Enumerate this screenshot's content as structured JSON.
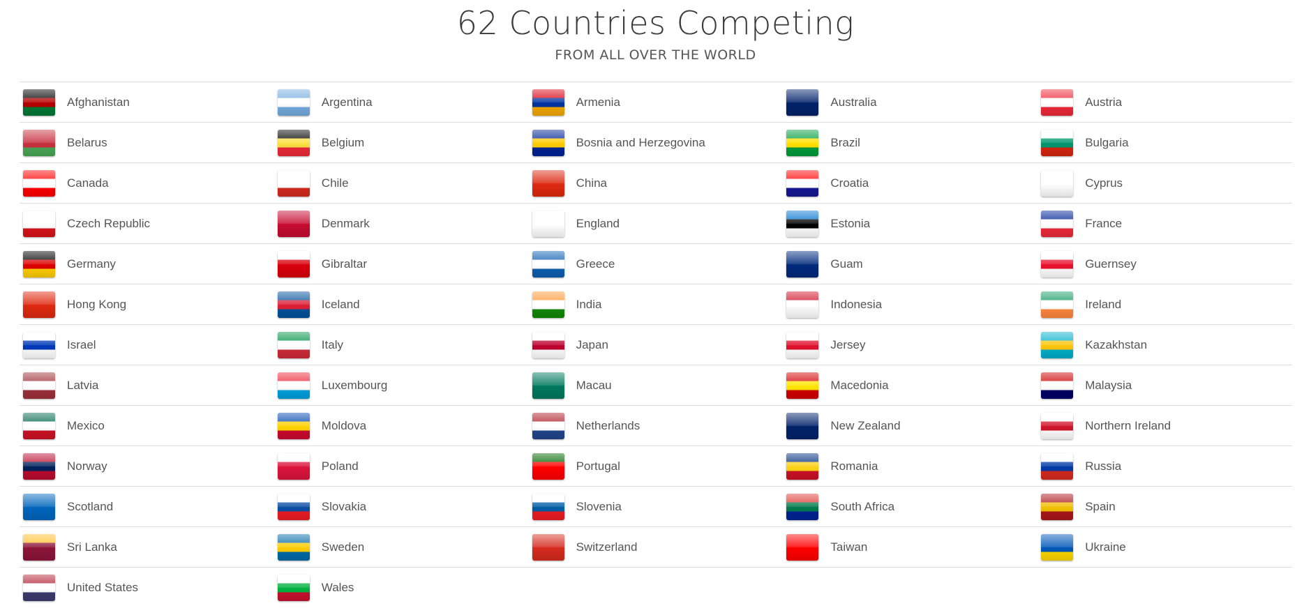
{
  "header": {
    "title": "62 Countries Competing",
    "subtitle": "FROM ALL OVER THE WORLD"
  },
  "countries": [
    {
      "name": "Afghanistan",
      "flag": "afghanistan-flag-icon",
      "colors": [
        "#000000",
        "#b40000",
        "#007a36"
      ]
    },
    {
      "name": "Argentina",
      "flag": "argentina-flag-icon",
      "colors": [
        "#74acdf",
        "#ffffff",
        "#74acdf"
      ]
    },
    {
      "name": "Armenia",
      "flag": "armenia-flag-icon",
      "colors": [
        "#d90012",
        "#0033a0",
        "#f2a800"
      ]
    },
    {
      "name": "Australia",
      "flag": "australia-flag-icon",
      "colors": [
        "#012169",
        "#012169",
        "#012169"
      ]
    },
    {
      "name": "Austria",
      "flag": "austria-flag-icon",
      "colors": [
        "#ed2939",
        "#ffffff",
        "#ed2939"
      ]
    },
    {
      "name": "Belarus",
      "flag": "belarus-flag-icon",
      "colors": [
        "#c8313e",
        "#c8313e",
        "#4aa657"
      ]
    },
    {
      "name": "Belgium",
      "flag": "belgium-flag-icon",
      "colors": [
        "#000000",
        "#fae042",
        "#ed2939"
      ]
    },
    {
      "name": "Bosnia and Herzegovina",
      "flag": "bosnia-flag-icon",
      "colors": [
        "#002395",
        "#fecb00",
        "#002395"
      ]
    },
    {
      "name": "Brazil",
      "flag": "brazil-flag-icon",
      "colors": [
        "#009c3b",
        "#ffdf00",
        "#009c3b"
      ]
    },
    {
      "name": "Bulgaria",
      "flag": "bulgaria-flag-icon",
      "colors": [
        "#ffffff",
        "#00966e",
        "#d62612"
      ]
    },
    {
      "name": "Canada",
      "flag": "canada-flag-icon",
      "colors": [
        "#ff0000",
        "#ffffff",
        "#ff0000"
      ]
    },
    {
      "name": "Chile",
      "flag": "chile-flag-icon",
      "colors": [
        "#ffffff",
        "#ffffff",
        "#d52b1e"
      ]
    },
    {
      "name": "China",
      "flag": "china-flag-icon",
      "colors": [
        "#de2910",
        "#de2910",
        "#de2910"
      ]
    },
    {
      "name": "Croatia",
      "flag": "croatia-flag-icon",
      "colors": [
        "#ff0000",
        "#ffffff",
        "#171796"
      ]
    },
    {
      "name": "Cyprus",
      "flag": "cyprus-flag-icon",
      "colors": [
        "#ffffff",
        "#ffffff",
        "#ffffff"
      ]
    },
    {
      "name": "Czech Republic",
      "flag": "czech-flag-icon",
      "colors": [
        "#ffffff",
        "#ffffff",
        "#d7141a"
      ]
    },
    {
      "name": "Denmark",
      "flag": "denmark-flag-icon",
      "colors": [
        "#c60c30",
        "#c60c30",
        "#c60c30"
      ]
    },
    {
      "name": "England",
      "flag": "england-flag-icon",
      "colors": [
        "#ffffff",
        "#ffffff",
        "#ffffff"
      ]
    },
    {
      "name": "Estonia",
      "flag": "estonia-flag-icon",
      "colors": [
        "#0072ce",
        "#000000",
        "#ffffff"
      ]
    },
    {
      "name": "France",
      "flag": "france-flag-icon",
      "colors": [
        "#002395",
        "#ffffff",
        "#ed2939"
      ]
    },
    {
      "name": "Germany",
      "flag": "germany-flag-icon",
      "colors": [
        "#000000",
        "#dd0000",
        "#ffce00"
      ]
    },
    {
      "name": "Gibraltar",
      "flag": "gibraltar-flag-icon",
      "colors": [
        "#ffffff",
        "#da000c",
        "#da000c"
      ]
    },
    {
      "name": "Greece",
      "flag": "greece-flag-icon",
      "colors": [
        "#0d5eaf",
        "#ffffff",
        "#0d5eaf"
      ]
    },
    {
      "name": "Guam",
      "flag": "guam-flag-icon",
      "colors": [
        "#00297b",
        "#00297b",
        "#00297b"
      ]
    },
    {
      "name": "Guernsey",
      "flag": "guernsey-flag-icon",
      "colors": [
        "#ffffff",
        "#e8112d",
        "#ffffff"
      ]
    },
    {
      "name": "Hong Kong",
      "flag": "hong-kong-flag-icon",
      "colors": [
        "#de2910",
        "#de2910",
        "#de2910"
      ]
    },
    {
      "name": "Iceland",
      "flag": "iceland-flag-icon",
      "colors": [
        "#02529c",
        "#dc1e35",
        "#02529c"
      ]
    },
    {
      "name": "India",
      "flag": "india-flag-icon",
      "colors": [
        "#ff9933",
        "#ffffff",
        "#138808"
      ]
    },
    {
      "name": "Indonesia",
      "flag": "indonesia-flag-icon",
      "colors": [
        "#ce1126",
        "#ffffff",
        "#ffffff"
      ]
    },
    {
      "name": "Ireland",
      "flag": "ireland-flag-icon",
      "colors": [
        "#169b62",
        "#ffffff",
        "#ff883e"
      ]
    },
    {
      "name": "Israel",
      "flag": "israel-flag-icon",
      "colors": [
        "#ffffff",
        "#0038b8",
        "#ffffff"
      ]
    },
    {
      "name": "Italy",
      "flag": "italy-flag-icon",
      "colors": [
        "#009246",
        "#ffffff",
        "#ce2b37"
      ]
    },
    {
      "name": "Japan",
      "flag": "japan-flag-icon",
      "colors": [
        "#ffffff",
        "#bc002d",
        "#ffffff"
      ]
    },
    {
      "name": "Jersey",
      "flag": "jersey-flag-icon",
      "colors": [
        "#ffffff",
        "#df112d",
        "#ffffff"
      ]
    },
    {
      "name": "Kazakhstan",
      "flag": "kazakhstan-flag-icon",
      "colors": [
        "#00afca",
        "#fec50c",
        "#00afca"
      ]
    },
    {
      "name": "Latvia",
      "flag": "latvia-flag-icon",
      "colors": [
        "#9e3039",
        "#ffffff",
        "#9e3039"
      ]
    },
    {
      "name": "Luxembourg",
      "flag": "luxembourg-flag-icon",
      "colors": [
        "#ed2939",
        "#ffffff",
        "#00a1de"
      ]
    },
    {
      "name": "Macau",
      "flag": "macau-flag-icon",
      "colors": [
        "#00785e",
        "#00785e",
        "#00785e"
      ]
    },
    {
      "name": "Macedonia",
      "flag": "macedonia-flag-icon",
      "colors": [
        "#d20000",
        "#ffe600",
        "#d20000"
      ]
    },
    {
      "name": "Malaysia",
      "flag": "malaysia-flag-icon",
      "colors": [
        "#cc0001",
        "#ffffff",
        "#010066"
      ]
    },
    {
      "name": "Mexico",
      "flag": "mexico-flag-icon",
      "colors": [
        "#006847",
        "#ffffff",
        "#ce1126"
      ]
    },
    {
      "name": "Moldova",
      "flag": "moldova-flag-icon",
      "colors": [
        "#0046ae",
        "#ffd200",
        "#cc092f"
      ]
    },
    {
      "name": "Netherlands",
      "flag": "netherlands-flag-icon",
      "colors": [
        "#ae1c28",
        "#ffffff",
        "#21468b"
      ]
    },
    {
      "name": "New Zealand",
      "flag": "new-zealand-flag-icon",
      "colors": [
        "#012169",
        "#012169",
        "#012169"
      ]
    },
    {
      "name": "Northern Ireland",
      "flag": "northern-ireland-flag-icon",
      "colors": [
        "#ffffff",
        "#cf142b",
        "#ffffff"
      ]
    },
    {
      "name": "Norway",
      "flag": "norway-flag-icon",
      "colors": [
        "#ba0c2f",
        "#00205b",
        "#ba0c2f"
      ]
    },
    {
      "name": "Poland",
      "flag": "poland-flag-icon",
      "colors": [
        "#ffffff",
        "#dc143c",
        "#dc143c"
      ]
    },
    {
      "name": "Portugal",
      "flag": "portugal-flag-icon",
      "colors": [
        "#006600",
        "#ff0000",
        "#ff0000"
      ]
    },
    {
      "name": "Romania",
      "flag": "romania-flag-icon",
      "colors": [
        "#002b7f",
        "#fcd116",
        "#ce1126"
      ]
    },
    {
      "name": "Russia",
      "flag": "russia-flag-icon",
      "colors": [
        "#ffffff",
        "#0039a6",
        "#d52b1e"
      ]
    },
    {
      "name": "Scotland",
      "flag": "scotland-flag-icon",
      "colors": [
        "#0065bd",
        "#0065bd",
        "#0065bd"
      ]
    },
    {
      "name": "Slovakia",
      "flag": "slovakia-flag-icon",
      "colors": [
        "#ffffff",
        "#0b4ea2",
        "#ee1c25"
      ]
    },
    {
      "name": "Slovenia",
      "flag": "slovenia-flag-icon",
      "colors": [
        "#ffffff",
        "#005da4",
        "#ed1c24"
      ]
    },
    {
      "name": "South Africa",
      "flag": "south-africa-flag-icon",
      "colors": [
        "#de3831",
        "#007a4d",
        "#002395"
      ]
    },
    {
      "name": "Spain",
      "flag": "spain-flag-icon",
      "colors": [
        "#aa151b",
        "#f1bf00",
        "#aa151b"
      ]
    },
    {
      "name": "Sri Lanka",
      "flag": "sri-lanka-flag-icon",
      "colors": [
        "#ffbe29",
        "#8d153a",
        "#8d153a"
      ]
    },
    {
      "name": "Sweden",
      "flag": "sweden-flag-icon",
      "colors": [
        "#006aa7",
        "#fecc00",
        "#006aa7"
      ]
    },
    {
      "name": "Switzerland",
      "flag": "switzerland-flag-icon",
      "colors": [
        "#d52b1e",
        "#d52b1e",
        "#d52b1e"
      ]
    },
    {
      "name": "Taiwan",
      "flag": "taiwan-flag-icon",
      "colors": [
        "#fe0000",
        "#fe0000",
        "#fe0000"
      ]
    },
    {
      "name": "Ukraine",
      "flag": "ukraine-flag-icon",
      "colors": [
        "#0057b7",
        "#0057b7",
        "#ffd700"
      ]
    },
    {
      "name": "United States",
      "flag": "united-states-flag-icon",
      "colors": [
        "#b22234",
        "#ffffff",
        "#3c3b6e"
      ]
    },
    {
      "name": "Wales",
      "flag": "wales-flag-icon",
      "colors": [
        "#ffffff",
        "#00b140",
        "#c8102e"
      ]
    }
  ]
}
